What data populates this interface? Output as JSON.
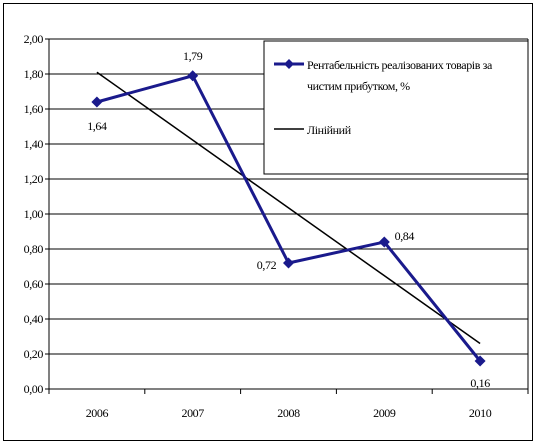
{
  "chart_data": {
    "type": "line",
    "categories": [
      "2006",
      "2007",
      "2008",
      "2009",
      "2010"
    ],
    "series": [
      {
        "name": "Рентабельність реалізованих товарів за чистим прибутком, %",
        "values": [
          1.64,
          1.79,
          0.72,
          0.84,
          0.16
        ],
        "labels": [
          "1,64",
          "1,79",
          "0,72",
          "0,84",
          "0,16"
        ],
        "color": "#1a1a8c",
        "marker": "diamond"
      }
    ],
    "trendline": {
      "name": "Лінійний",
      "kind": "linear",
      "color": "#000000",
      "start_value": 1.81,
      "end_value": 0.26
    },
    "ylim": [
      0,
      2
    ],
    "y_ticks": [
      "0,00",
      "0,20",
      "0,40",
      "0,60",
      "0,80",
      "1,00",
      "1,20",
      "1,40",
      "1,60",
      "1,80",
      "2,00"
    ],
    "grid": true,
    "legend_position": "top-right",
    "legend": {
      "series_line1": "Рентабельність реалізованих товарів за",
      "series_line2": "чистим прибутком, %",
      "trend_label": "Лінійний"
    }
  }
}
